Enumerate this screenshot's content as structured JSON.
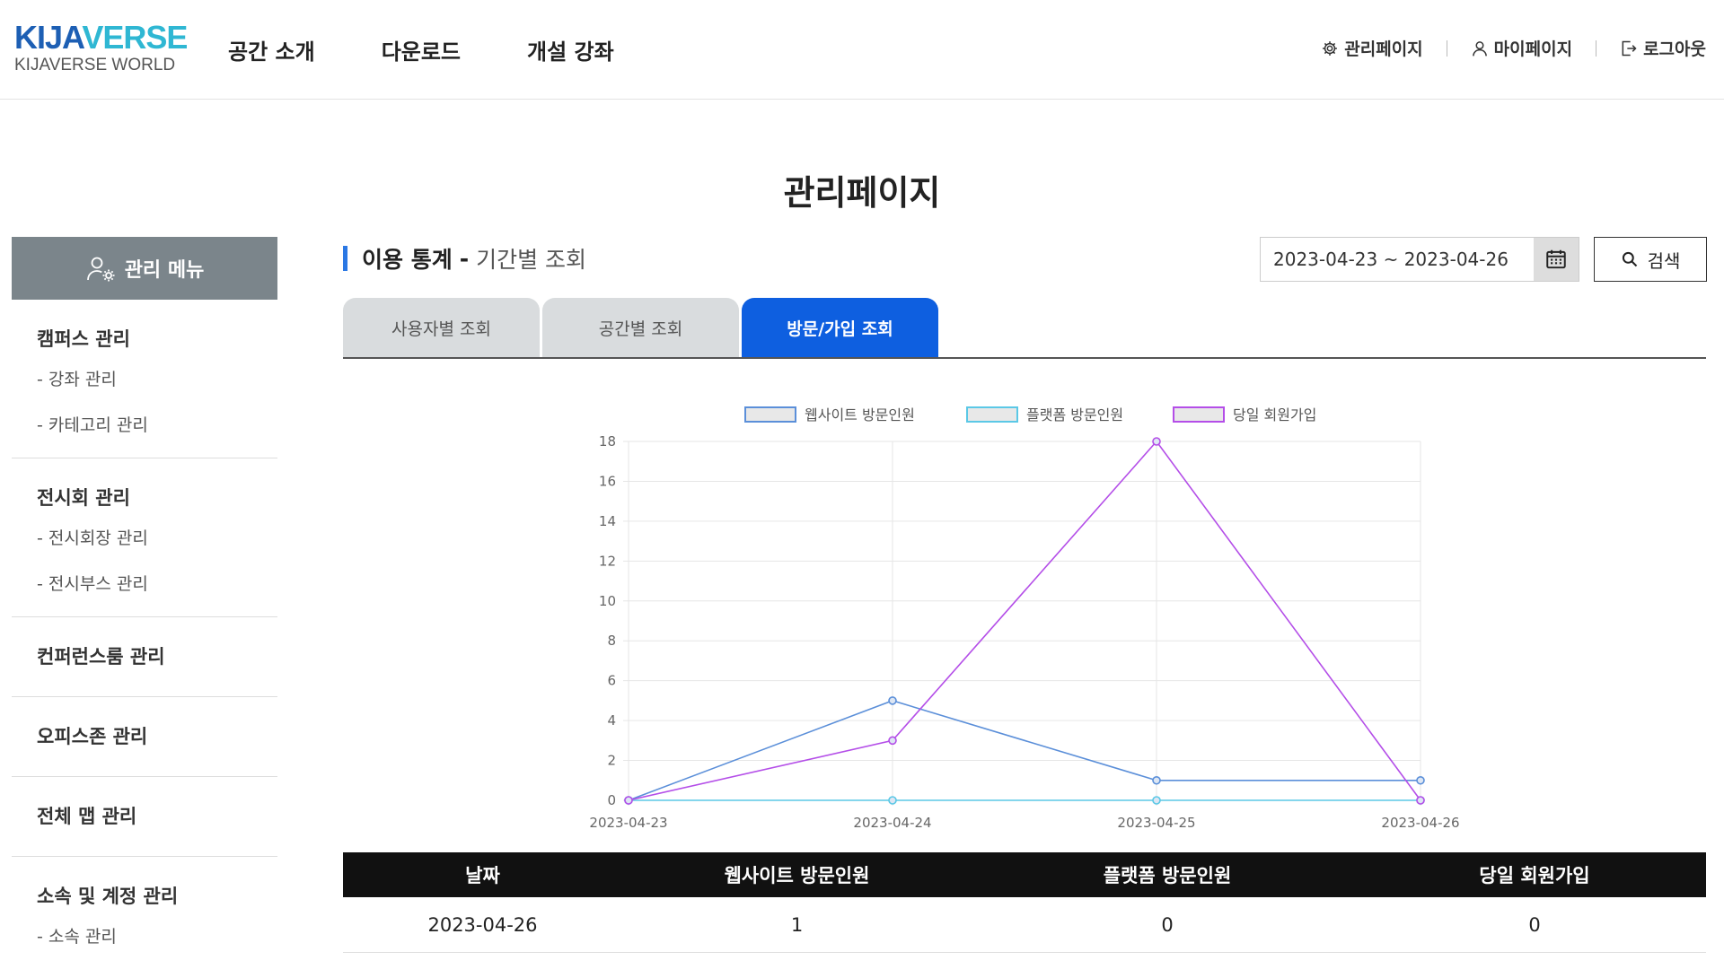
{
  "header": {
    "logo_main_a": "KIJA",
    "logo_main_b": "VERSE",
    "logo_sub": "KIJAVERSE WORLD",
    "nav": [
      "공간 소개",
      "다운로드",
      "개설 강좌"
    ],
    "util": {
      "admin": "관리페이지",
      "mypage": "마이페이지",
      "logout": "로그아웃"
    }
  },
  "page_title": "관리페이지",
  "sidebar": {
    "head": "관리 메뉴",
    "groups": [
      {
        "title": "캠퍼스 관리",
        "subs": [
          "- 강좌 관리",
          "- 카테고리 관리"
        ]
      },
      {
        "title": "전시회 관리",
        "subs": [
          "- 전시회장 관리",
          "- 전시부스 관리"
        ]
      },
      {
        "title": "컨퍼런스룸 관리",
        "subs": []
      },
      {
        "title": "오피스존 관리",
        "subs": []
      },
      {
        "title": "전체 맵 관리",
        "subs": []
      },
      {
        "title": "소속 및 계정 관리",
        "subs": [
          "- 소속 관리"
        ]
      }
    ]
  },
  "section": {
    "strong": "이용 통계",
    "dash": "-",
    "light": "기간별 조회"
  },
  "search": {
    "date_range": "2023-04-23 ~ 2023-04-26",
    "button": "검색"
  },
  "tabs": [
    "사용자별 조회",
    "공간별 조회",
    "방문/가입 조회"
  ],
  "chart_data": {
    "type": "line",
    "categories": [
      "2023-04-23",
      "2023-04-24",
      "2023-04-25",
      "2023-04-26"
    ],
    "ylim": [
      0,
      18
    ],
    "yticks": [
      0,
      2,
      4,
      6,
      8,
      10,
      12,
      14,
      16,
      18
    ],
    "grid": true,
    "legend": "top",
    "series": [
      {
        "name": "웹사이트 방문인원",
        "values": [
          0,
          5,
          1,
          1
        ],
        "color": "#5b8fd9"
      },
      {
        "name": "플랫폼 방문인원",
        "values": [
          0,
          0,
          0,
          0
        ],
        "color": "#5bc8e6"
      },
      {
        "name": "당일 회원가입",
        "values": [
          0,
          3,
          18,
          0
        ],
        "color": "#b44ee8"
      }
    ]
  },
  "table": {
    "headers": [
      "날짜",
      "웹사이트 방문인원",
      "플랫폼 방문인원",
      "당일 회원가입"
    ],
    "rows": [
      [
        "2023-04-26",
        "1",
        "0",
        "0"
      ]
    ]
  }
}
